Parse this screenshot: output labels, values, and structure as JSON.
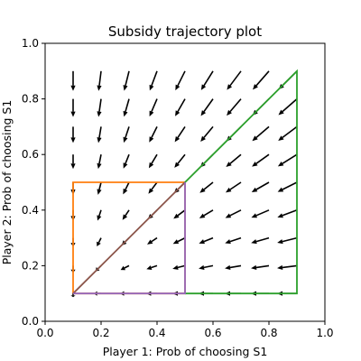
{
  "chart_data": {
    "type": "quiver",
    "title": "Subsidy trajectory plot",
    "xlabel": "Player 1: Prob of choosing S1",
    "ylabel": "Player 2: Prob of choosing S1",
    "xlim": [
      0.0,
      1.0
    ],
    "ylim": [
      0.0,
      1.0
    ],
    "x_ticks": [
      "0.0",
      "0.2",
      "0.4",
      "0.6",
      "0.8",
      "1.0"
    ],
    "y_ticks": [
      "0.0",
      "0.2",
      "0.4",
      "0.6",
      "0.8",
      "1.0"
    ],
    "grid": false,
    "legend": "none",
    "quiver": {
      "color": "#000000",
      "grid_values": [
        0.1,
        0.2,
        0.3,
        0.4,
        0.5,
        0.6,
        0.7,
        0.8,
        0.9
      ],
      "vector_field": "arrows point toward (0.1, 0.1); magnitude grows with distance from the lower-left corner"
    },
    "series": [
      {
        "color": "#ff7f0e",
        "x": [
          0.1,
          0.5,
          0.5,
          0.1,
          0.1
        ],
        "y": [
          0.1,
          0.1,
          0.5,
          0.5,
          0.1
        ]
      },
      {
        "color": "#2ca02c",
        "x": [
          0.5,
          0.9,
          0.9,
          0.5
        ],
        "y": [
          0.5,
          0.9,
          0.1,
          0.1
        ]
      },
      {
        "color": "#8c564b",
        "x": [
          0.1,
          0.5
        ],
        "y": [
          0.1,
          0.5
        ]
      },
      {
        "color": "#9467bd",
        "x": [
          0.1,
          0.5,
          0.5
        ],
        "y": [
          0.1,
          0.1,
          0.5
        ]
      }
    ]
  }
}
